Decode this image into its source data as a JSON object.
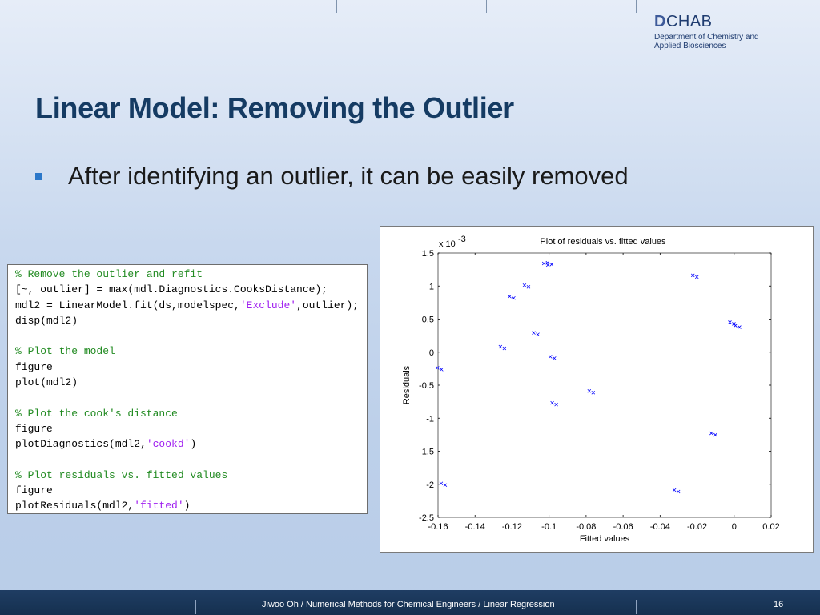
{
  "logo": {
    "brand_letter": "D",
    "brand_rest": "CHAB",
    "line1": "Department of Chemistry and",
    "line2": "Applied Biosciences"
  },
  "slide": {
    "title": "Linear Model: Removing the Outlier",
    "bullet": "After identifying an outlier, it can be easily removed"
  },
  "code": [
    {
      "kind": "comment",
      "text": "% Remove the outlier and refit"
    },
    {
      "kind": "plain",
      "text": "[~, outlier] = max(mdl.Diagnostics.CooksDistance);"
    },
    {
      "kind": "mixed",
      "pre": "mdl2 = LinearModel.fit(ds,modelspec,",
      "str": "'Exclude'",
      "post": ",outlier);"
    },
    {
      "kind": "plain",
      "text": "disp(mdl2)"
    },
    {
      "kind": "blank",
      "text": ""
    },
    {
      "kind": "comment",
      "text": "% Plot the model"
    },
    {
      "kind": "plain",
      "text": "figure"
    },
    {
      "kind": "plain",
      "text": "plot(mdl2)"
    },
    {
      "kind": "blank",
      "text": ""
    },
    {
      "kind": "comment",
      "text": "% Plot the cook's distance"
    },
    {
      "kind": "plain",
      "text": "figure"
    },
    {
      "kind": "mixed",
      "pre": "plotDiagnostics(mdl2,",
      "str": "'cookd'",
      "post": ")"
    },
    {
      "kind": "blank",
      "text": ""
    },
    {
      "kind": "comment",
      "text": "% Plot residuals vs. fitted values"
    },
    {
      "kind": "plain",
      "text": "figure"
    },
    {
      "kind": "mixed",
      "pre": "plotResiduals(mdl2,",
      "str": "'fitted'",
      "post": ")"
    }
  ],
  "colors": {
    "comment": "#228b22",
    "string": "#a020f0",
    "title": "#153b63",
    "bullet": "#2b77c9",
    "footer": "#1f3d63"
  },
  "chart_data": {
    "type": "scatter",
    "title": "Plot of residuals vs. fitted values",
    "xlabel": "Fitted values",
    "ylabel": "Residuals",
    "y_multiplier_base": "x 10",
    "y_multiplier_exp": "-3",
    "xlim": [
      -0.16,
      0.02
    ],
    "ylim": [
      -2.5,
      1.5
    ],
    "x_ticks": [
      "-0.16",
      "-0.14",
      "-0.12",
      "-0.1",
      "-0.08",
      "-0.06",
      "-0.04",
      "-0.02",
      "0",
      "0.02"
    ],
    "y_ticks": [
      "1.5",
      "1",
      "0.5",
      "0",
      "-0.5",
      "-1",
      "-1.5",
      "-2",
      "-2.5"
    ],
    "marker": "x",
    "marker_color": "#0000ff",
    "zero_line": true,
    "points": [
      {
        "x": -0.159,
        "y": -0.25
      },
      {
        "x": -0.157,
        "y": -2.0
      },
      {
        "x": -0.125,
        "y": 0.07
      },
      {
        "x": -0.12,
        "y": 0.83
      },
      {
        "x": -0.112,
        "y": 1.0
      },
      {
        "x": -0.107,
        "y": 0.28
      },
      {
        "x": -0.1015,
        "y": 1.33
      },
      {
        "x": -0.0995,
        "y": 1.34
      },
      {
        "x": -0.098,
        "y": -0.08
      },
      {
        "x": -0.097,
        "y": -0.78
      },
      {
        "x": -0.077,
        "y": -0.6
      },
      {
        "x": -0.031,
        "y": -2.1
      },
      {
        "x": -0.021,
        "y": 1.15
      },
      {
        "x": -0.011,
        "y": -1.24
      },
      {
        "x": -0.001,
        "y": 0.44
      },
      {
        "x": 0.002,
        "y": 0.39
      }
    ]
  },
  "footer": {
    "text": "Jiwoo Oh / Numerical Methods for Chemical Engineers / Linear Regression",
    "page": "16"
  }
}
